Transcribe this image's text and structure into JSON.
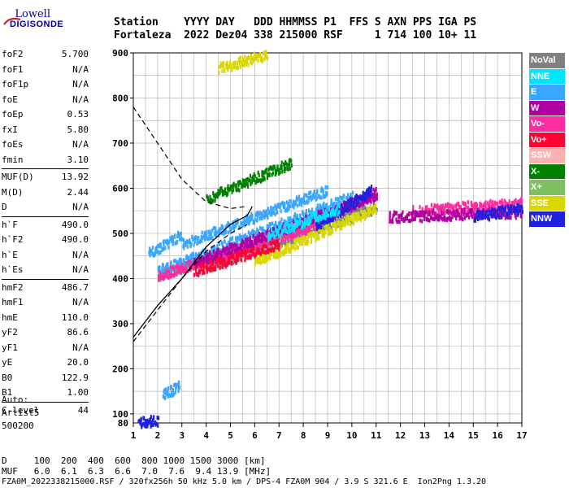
{
  "logo": {
    "line1": "Lowell",
    "line2": "DIGISONDE"
  },
  "header": {
    "labels": "Station    YYYY DAY   DDD HHMMSS P1  FFS S AXN PPS IGA PS",
    "values": "Fortaleza  2022 Dez04 338 215000 RSF     1 714 100 10+ 11"
  },
  "params": [
    {
      "group": [
        {
          "k": "foF2",
          "v": "5.700"
        },
        {
          "k": "foF1",
          "v": "N/A"
        },
        {
          "k": "foF1p",
          "v": "N/A"
        },
        {
          "k": "foE",
          "v": "N/A"
        },
        {
          "k": "foEp",
          "v": "0.53"
        },
        {
          "k": "fxI",
          "v": "5.80"
        },
        {
          "k": "foEs",
          "v": "N/A"
        },
        {
          "k": "fmin",
          "v": "3.10"
        }
      ]
    },
    {
      "group": [
        {
          "k": "MUF(D)",
          "v": "13.92"
        },
        {
          "k": "M(D)",
          "v": "2.44"
        },
        {
          "k": "D",
          "v": "N/A"
        }
      ]
    },
    {
      "group": [
        {
          "k": "h`F",
          "v": "490.0"
        },
        {
          "k": "h`F2",
          "v": "490.0"
        },
        {
          "k": "h`E",
          "v": "N/A"
        },
        {
          "k": "h`Es",
          "v": "N/A"
        }
      ]
    },
    {
      "group": [
        {
          "k": "hmF2",
          "v": "486.7"
        },
        {
          "k": "hmF1",
          "v": "N/A"
        },
        {
          "k": "hmE",
          "v": "110.0"
        },
        {
          "k": "yF2",
          "v": "86.6"
        },
        {
          "k": "yF1",
          "v": "N/A"
        },
        {
          "k": "yE",
          "v": "20.0"
        },
        {
          "k": "B0",
          "v": "122.9"
        },
        {
          "k": "B1",
          "v": "1.00"
        }
      ]
    },
    {
      "group": [
        {
          "k": "C-level",
          "v": "44"
        }
      ]
    }
  ],
  "auto": {
    "line1": "Auto:",
    "line2": "Artist5",
    "line3": "500200"
  },
  "legend": [
    {
      "label": "NoVal",
      "color": "#808080"
    },
    {
      "label": "NNE",
      "color": "#00e5ff"
    },
    {
      "label": "E",
      "color": "#3aa6ff"
    },
    {
      "label": "W",
      "color": "#b000a0"
    },
    {
      "label": "Vo-",
      "color": "#ff2ba0"
    },
    {
      "label": "Vo+",
      "color": "#ff0033"
    },
    {
      "label": "SSW",
      "color": "#ffb0b0"
    },
    {
      "label": "X-",
      "color": "#008000"
    },
    {
      "label": "X+",
      "color": "#80c060"
    },
    {
      "label": "SSE",
      "color": "#d8d800"
    },
    {
      "label": "NNW",
      "color": "#2020e0"
    }
  ],
  "footer": {
    "d_row": "D     100  200  400  600  800 1000 1500 3000 [km]",
    "muf_row": "MUF   6.0  6.1  6.3  6.6  7.0  7.6  9.4 13.9 [MHz]",
    "file_row": "FZA0M_2022338215000.RSF / 320fx256h 50 kHz 5.0 km / DPS-4 FZA0M 904 / 3.9 S 321.6 E  Ion2Png 1.3.20"
  },
  "chart_data": {
    "type": "scatter",
    "title": "",
    "xlabel": "",
    "ylabel": "",
    "xlim": [
      1,
      17
    ],
    "ylim": [
      80,
      900
    ],
    "x_ticks": [
      1,
      2,
      3,
      4,
      5,
      6,
      7,
      8,
      9,
      10,
      11,
      12,
      13,
      14,
      15,
      16,
      17
    ],
    "y_ticks": [
      100,
      200,
      300,
      400,
      500,
      600,
      700,
      800,
      900
    ],
    "y_tick_labels": [
      "100",
      "200",
      "300",
      "400",
      "500",
      "600",
      "700",
      "800",
      "900"
    ],
    "x_gridlines": [
      1,
      1.5,
      2,
      2.5,
      3,
      3.5,
      4,
      4.5,
      5,
      5.5,
      6,
      6.5,
      7,
      7.5,
      8,
      8.5,
      9,
      9.5,
      10,
      10.5,
      11,
      11.5,
      12,
      12.5,
      13,
      13.5,
      14,
      14.5,
      15,
      15.5,
      16,
      16.5,
      17
    ],
    "y_gridlines": [
      100,
      150,
      200,
      250,
      300,
      350,
      400,
      450,
      500,
      550,
      600,
      650,
      700,
      750,
      800,
      850,
      900
    ],
    "grid": true,
    "series": [
      {
        "color": "#808080",
        "legend": "NoVal",
        "segments": [
          [
            2.0,
            410,
            10.5,
            570
          ],
          [
            4.0,
            430,
            11.0,
            560
          ]
        ]
      },
      {
        "color": "#3aa6ff",
        "legend": "E",
        "segments": [
          [
            2.0,
            420,
            10.0,
            585
          ],
          [
            3.0,
            480,
            9.0,
            600
          ],
          [
            2.2,
            145,
            2.9,
            165
          ],
          [
            1.6,
            460,
            3.0,
            500
          ]
        ]
      },
      {
        "color": "#ff2ba0",
        "legend": "Vo-",
        "segments": [
          [
            2.0,
            410,
            8.5,
            520
          ],
          [
            12.5,
            555,
            17.0,
            570
          ]
        ]
      },
      {
        "color": "#b000a0",
        "legend": "W",
        "segments": [
          [
            3.5,
            440,
            11.0,
            590
          ],
          [
            11.5,
            540,
            17.0,
            550
          ],
          [
            9.0,
            540,
            11.0,
            595
          ]
        ]
      },
      {
        "color": "#d8d800",
        "legend": "SSE",
        "segments": [
          [
            6.0,
            440,
            11.0,
            560
          ],
          [
            4.5,
            870,
            6.5,
            900
          ]
        ]
      },
      {
        "color": "#2020e0",
        "legend": "NNW",
        "segments": [
          [
            8.5,
            520,
            10.8,
            600
          ],
          [
            15.0,
            540,
            17.0,
            560
          ],
          [
            1.2,
            86,
            2.0,
            88
          ]
        ]
      },
      {
        "color": "#ff0033",
        "legend": "Vo+",
        "segments": [
          [
            3.5,
            420,
            7.0,
            480
          ]
        ]
      },
      {
        "color": "#008000",
        "legend": "X-",
        "segments": [
          [
            4.0,
            580,
            7.5,
            660
          ]
        ]
      },
      {
        "color": "#00e5ff",
        "legend": "NNE",
        "segments": [
          [
            6.5,
            500,
            9.5,
            560
          ]
        ]
      }
    ],
    "profile_line": [
      [
        1.0,
        270
      ],
      [
        2.0,
        340
      ],
      [
        3.0,
        400
      ],
      [
        4.0,
        470
      ],
      [
        5.0,
        520
      ],
      [
        5.7,
        540
      ],
      [
        5.9,
        560
      ]
    ],
    "dashed_curve": [
      [
        1.0,
        780
      ],
      [
        2.0,
        700
      ],
      [
        3.0,
        620
      ],
      [
        4.0,
        570
      ],
      [
        5.0,
        555
      ],
      [
        5.7,
        560
      ]
    ],
    "dashed_lower": [
      [
        1.0,
        260
      ],
      [
        2.0,
        330
      ],
      [
        3.0,
        400
      ],
      [
        4.0,
        460
      ],
      [
        5.0,
        500
      ],
      [
        5.7,
        520
      ]
    ]
  }
}
